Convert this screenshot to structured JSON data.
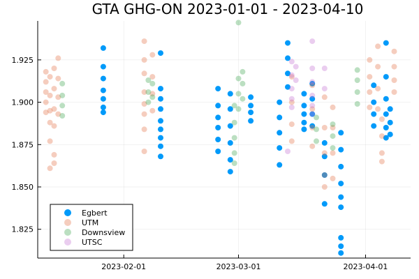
{
  "chart_data": {
    "type": "scatter",
    "title": "GTA GHG-ON 2023-01-01 - 2023-04-10",
    "xlabel": "",
    "ylabel": "",
    "x_axis_type": "date",
    "xlim": [
      "2023-01-11",
      "2023-04-12"
    ],
    "ylim": [
      1.808,
      1.948
    ],
    "x_ticks": [
      "2023-02-01",
      "2023-03-01",
      "2023-04-01"
    ],
    "y_ticks": [
      1.825,
      1.85,
      1.875,
      1.9,
      1.925
    ],
    "y_tick_labels": [
      "1.825",
      "1.850",
      "1.875",
      "1.900",
      "1.925"
    ],
    "grid": true,
    "legend_position": "bottom-left",
    "series": [
      {
        "name": "Egbert",
        "color": "#009AFA",
        "opacity": 1.0,
        "points": [
          [
            "2023-01-27",
            1.932
          ],
          [
            "2023-01-27",
            1.921
          ],
          [
            "2023-01-27",
            1.914
          ],
          [
            "2023-01-27",
            1.907
          ],
          [
            "2023-01-27",
            1.902
          ],
          [
            "2023-01-27",
            1.897
          ],
          [
            "2023-01-27",
            1.894
          ],
          [
            "2023-02-10",
            1.929
          ],
          [
            "2023-02-10",
            1.908
          ],
          [
            "2023-02-10",
            1.902
          ],
          [
            "2023-02-10",
            1.896
          ],
          [
            "2023-02-10",
            1.889
          ],
          [
            "2023-02-10",
            1.884
          ],
          [
            "2023-02-10",
            1.879
          ],
          [
            "2023-02-10",
            1.874
          ],
          [
            "2023-02-10",
            1.868
          ],
          [
            "2023-02-24",
            1.908
          ],
          [
            "2023-02-24",
            1.898
          ],
          [
            "2023-02-24",
            1.891
          ],
          [
            "2023-02-24",
            1.885
          ],
          [
            "2023-02-24",
            1.878
          ],
          [
            "2023-02-24",
            1.871
          ],
          [
            "2023-02-27",
            1.905
          ],
          [
            "2023-02-27",
            1.896
          ],
          [
            "2023-02-27",
            1.886
          ],
          [
            "2023-02-27",
            1.876
          ],
          [
            "2023-02-27",
            1.866
          ],
          [
            "2023-02-27",
            1.859
          ],
          [
            "2023-03-04",
            1.903
          ],
          [
            "2023-03-04",
            1.898
          ],
          [
            "2023-03-04",
            1.894
          ],
          [
            "2023-03-04",
            1.889
          ],
          [
            "2023-03-11",
            1.9
          ],
          [
            "2023-03-11",
            1.891
          ],
          [
            "2023-03-11",
            1.882
          ],
          [
            "2023-03-11",
            1.873
          ],
          [
            "2023-03-11",
            1.863
          ],
          [
            "2023-03-13",
            1.935
          ],
          [
            "2023-03-13",
            1.926
          ],
          [
            "2023-03-13",
            1.917
          ],
          [
            "2023-03-13",
            1.909
          ],
          [
            "2023-03-17",
            1.905
          ],
          [
            "2023-03-17",
            1.898
          ],
          [
            "2023-03-17",
            1.893
          ],
          [
            "2023-03-17",
            1.888
          ],
          [
            "2023-03-17",
            1.884
          ],
          [
            "2023-03-19",
            1.911
          ],
          [
            "2023-03-19",
            1.902
          ],
          [
            "2023-03-19",
            1.893
          ],
          [
            "2023-03-19",
            1.886
          ],
          [
            "2023-03-22",
            1.84
          ],
          [
            "2023-03-22",
            1.857
          ],
          [
            "2023-03-22",
            1.868
          ],
          [
            "2023-03-22",
            1.876
          ],
          [
            "2023-03-26",
            1.882
          ],
          [
            "2023-03-26",
            1.872
          ],
          [
            "2023-03-26",
            1.862
          ],
          [
            "2023-03-26",
            1.852
          ],
          [
            "2023-03-26",
            1.844
          ],
          [
            "2023-03-26",
            1.838
          ],
          [
            "2023-03-26",
            1.82
          ],
          [
            "2023-03-26",
            1.815
          ],
          [
            "2023-03-26",
            1.811
          ],
          [
            "2023-04-03",
            1.91
          ],
          [
            "2023-04-03",
            1.9
          ],
          [
            "2023-04-03",
            1.893
          ],
          [
            "2023-04-03",
            1.886
          ],
          [
            "2023-04-06",
            1.935
          ],
          [
            "2023-04-06",
            1.915
          ],
          [
            "2023-04-06",
            1.902
          ],
          [
            "2023-04-06",
            1.893
          ],
          [
            "2023-04-06",
            1.885
          ],
          [
            "2023-04-06",
            1.879
          ],
          [
            "2023-04-07",
            1.896
          ],
          [
            "2023-04-07",
            1.888
          ],
          [
            "2023-04-07",
            1.881
          ]
        ]
      },
      {
        "name": "UTM",
        "color": "#E26F46",
        "opacity": 0.35,
        "points": [
          [
            "2023-01-13",
            1.918
          ],
          [
            "2023-01-13",
            1.912
          ],
          [
            "2023-01-13",
            1.906
          ],
          [
            "2023-01-13",
            1.9
          ],
          [
            "2023-01-13",
            1.894
          ],
          [
            "2023-01-14",
            1.915
          ],
          [
            "2023-01-14",
            1.904
          ],
          [
            "2023-01-14",
            1.895
          ],
          [
            "2023-01-14",
            1.888
          ],
          [
            "2023-01-14",
            1.877
          ],
          [
            "2023-01-14",
            1.861
          ],
          [
            "2023-01-15",
            1.92
          ],
          [
            "2023-01-15",
            1.908
          ],
          [
            "2023-01-15",
            1.896
          ],
          [
            "2023-01-15",
            1.886
          ],
          [
            "2023-01-15",
            1.869
          ],
          [
            "2023-01-15",
            1.864
          ],
          [
            "2023-01-16",
            1.926
          ],
          [
            "2023-01-16",
            1.914
          ],
          [
            "2023-01-16",
            1.903
          ],
          [
            "2023-01-16",
            1.893
          ],
          [
            "2023-02-06",
            1.936
          ],
          [
            "2023-02-06",
            1.925
          ],
          [
            "2023-02-06",
            1.917
          ],
          [
            "2023-02-06",
            1.906
          ],
          [
            "2023-02-06",
            1.899
          ],
          [
            "2023-02-06",
            1.893
          ],
          [
            "2023-02-06",
            1.884
          ],
          [
            "2023-02-06",
            1.871
          ],
          [
            "2023-02-08",
            1.928
          ],
          [
            "2023-02-08",
            1.915
          ],
          [
            "2023-02-08",
            1.905
          ],
          [
            "2023-02-08",
            1.895
          ],
          [
            "2023-03-14",
            1.915
          ],
          [
            "2023-03-14",
            1.9
          ],
          [
            "2023-03-14",
            1.887
          ],
          [
            "2023-03-14",
            1.877
          ],
          [
            "2023-03-19",
            1.91
          ],
          [
            "2023-03-19",
            1.896
          ],
          [
            "2023-03-19",
            1.885
          ],
          [
            "2023-03-19",
            1.874
          ],
          [
            "2023-03-22",
            1.903
          ],
          [
            "2023-03-22",
            1.885
          ],
          [
            "2023-03-22",
            1.87
          ],
          [
            "2023-03-22",
            1.857
          ],
          [
            "2023-03-22",
            1.85
          ],
          [
            "2023-03-24",
            1.897
          ],
          [
            "2023-03-24",
            1.885
          ],
          [
            "2023-03-24",
            1.87
          ],
          [
            "2023-03-24",
            1.855
          ],
          [
            "2023-04-02",
            1.925
          ],
          [
            "2023-04-02",
            1.915
          ],
          [
            "2023-04-02",
            1.906
          ],
          [
            "2023-04-02",
            1.897
          ],
          [
            "2023-04-04",
            1.933
          ],
          [
            "2023-04-04",
            1.921
          ],
          [
            "2023-04-04",
            1.908
          ],
          [
            "2023-04-04",
            1.896
          ],
          [
            "2023-04-05",
            1.89
          ],
          [
            "2023-04-05",
            1.88
          ],
          [
            "2023-04-05",
            1.87
          ],
          [
            "2023-04-05",
            1.865
          ],
          [
            "2023-04-08",
            1.93
          ],
          [
            "2023-04-08",
            1.921
          ],
          [
            "2023-04-08",
            1.913
          ],
          [
            "2023-04-08",
            1.906
          ]
        ]
      },
      {
        "name": "Downsview",
        "color": "#3DA44D",
        "opacity": 0.35,
        "points": [
          [
            "2023-01-17",
            1.911
          ],
          [
            "2023-01-17",
            1.904
          ],
          [
            "2023-01-17",
            1.898
          ],
          [
            "2023-01-17",
            1.892
          ],
          [
            "2023-02-07",
            1.913
          ],
          [
            "2023-02-07",
            1.906
          ],
          [
            "2023-02-07",
            1.9
          ],
          [
            "2023-02-08",
            1.911
          ],
          [
            "2023-02-08",
            1.903
          ],
          [
            "2023-02-28",
            1.898
          ],
          [
            "2023-02-28",
            1.888
          ],
          [
            "2023-02-28",
            1.879
          ],
          [
            "2023-02-28",
            1.87
          ],
          [
            "2023-02-28",
            1.864
          ],
          [
            "2023-03-01",
            1.914
          ],
          [
            "2023-03-01",
            1.905
          ],
          [
            "2023-03-01",
            1.896
          ],
          [
            "2023-03-01",
            1.947
          ],
          [
            "2023-03-02",
            1.918
          ],
          [
            "2023-03-02",
            1.911
          ],
          [
            "2023-03-02",
            1.902
          ],
          [
            "2023-03-20",
            1.891
          ],
          [
            "2023-03-20",
            1.884
          ],
          [
            "2023-03-20",
            1.877
          ],
          [
            "2023-03-24",
            1.887
          ],
          [
            "2023-03-24",
            1.88
          ],
          [
            "2023-03-24",
            1.873
          ],
          [
            "2023-03-30",
            1.919
          ],
          [
            "2023-03-30",
            1.913
          ],
          [
            "2023-03-30",
            1.906
          ],
          [
            "2023-03-30",
            1.899
          ]
        ]
      },
      {
        "name": "UTSC",
        "color": "#C371D2",
        "opacity": 0.35,
        "points": [
          [
            "2023-03-14",
            1.924
          ],
          [
            "2023-03-14",
            1.916
          ],
          [
            "2023-03-14",
            1.908
          ],
          [
            "2023-03-14",
            1.902
          ],
          [
            "2023-03-14",
            1.897
          ],
          [
            "2023-03-15",
            1.921
          ],
          [
            "2023-03-15",
            1.913
          ],
          [
            "2023-03-19",
            1.936
          ],
          [
            "2023-03-19",
            1.92
          ],
          [
            "2023-03-19",
            1.912
          ],
          [
            "2023-03-19",
            1.904
          ],
          [
            "2023-03-19",
            1.898
          ],
          [
            "2023-03-19",
            1.893
          ],
          [
            "2023-03-22",
            1.92
          ],
          [
            "2023-03-22",
            1.908
          ],
          [
            "2023-03-13",
            1.871
          ]
        ]
      }
    ]
  }
}
